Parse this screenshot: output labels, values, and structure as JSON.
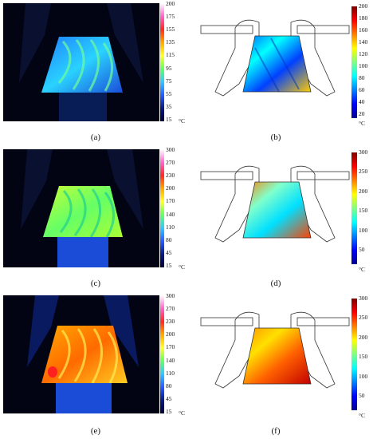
{
  "panels": [
    {
      "id": "a",
      "label": "(a)",
      "type": "thermal-image",
      "scale": {
        "ticks": [
          "200",
          "175",
          "155",
          "135",
          "115",
          "95",
          "75",
          "55",
          "35",
          "15"
        ],
        "unit": "°C"
      }
    },
    {
      "id": "b",
      "label": "(b)",
      "type": "simulation",
      "scale": {
        "ticks": [
          "200",
          "180",
          "160",
          "140",
          "120",
          "100",
          "80",
          "60",
          "40",
          "20"
        ],
        "unit": "°C"
      }
    },
    {
      "id": "c",
      "label": "(c)",
      "type": "thermal-image",
      "scale": {
        "ticks": [
          "300",
          "270",
          "230",
          "200",
          "170",
          "140",
          "110",
          "80",
          "45",
          "15"
        ],
        "unit": "°C"
      }
    },
    {
      "id": "d",
      "label": "(d)",
      "type": "simulation",
      "scale": {
        "ticks": [
          "300",
          "250",
          "200",
          "150",
          "100",
          "50"
        ],
        "unit": "°C"
      }
    },
    {
      "id": "e",
      "label": "(e)",
      "type": "thermal-image",
      "scale": {
        "ticks": [
          "300",
          "270",
          "230",
          "200",
          "170",
          "140",
          "110",
          "80",
          "45",
          "15"
        ],
        "unit": "°C"
      }
    },
    {
      "id": "f",
      "label": "(f)",
      "type": "simulation",
      "scale": {
        "ticks": [
          "300",
          "250",
          "200",
          "150",
          "100",
          "50"
        ],
        "unit": "°C"
      }
    }
  ],
  "colors": {
    "ir_background": "#020414",
    "ir_scale": [
      "#ffffff",
      "#ff66cc",
      "#ff2a2a",
      "#ffaa00",
      "#ffff33",
      "#66ff66",
      "#33c8ff",
      "#2a5cff",
      "#0a1a80",
      "#000033"
    ],
    "jet_scale": [
      "#7f0000",
      "#ff0000",
      "#ff8000",
      "#ffff00",
      "#80ff80",
      "#00ffff",
      "#0080ff",
      "#0000ff",
      "#00008f"
    ]
  }
}
